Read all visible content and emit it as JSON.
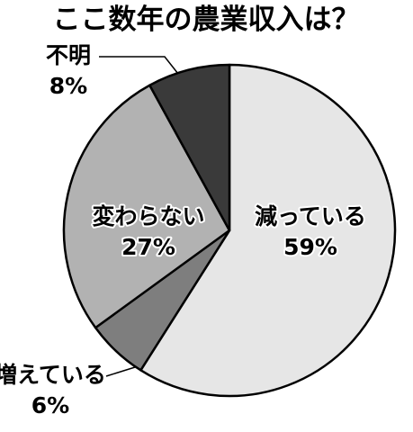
{
  "chart_data": {
    "type": "pie",
    "title": "ここ数年の農業収入は？",
    "slices": [
      {
        "label": "減っている",
        "value": 59,
        "value_label": "59%",
        "color": "#e6e6e6",
        "label_placement": "inside"
      },
      {
        "label": "増えている",
        "value": 6,
        "value_label": "6%",
        "color": "#7e7e7e",
        "label_placement": "outside"
      },
      {
        "label": "変わらない",
        "value": 27,
        "value_label": "27%",
        "color": "#b2b2b2",
        "label_placement": "inside"
      },
      {
        "label": "不明",
        "value": 8,
        "value_label": "8%",
        "color": "#3a3a3a",
        "label_placement": "outside"
      }
    ],
    "direction": "clockwise",
    "start": "top"
  }
}
